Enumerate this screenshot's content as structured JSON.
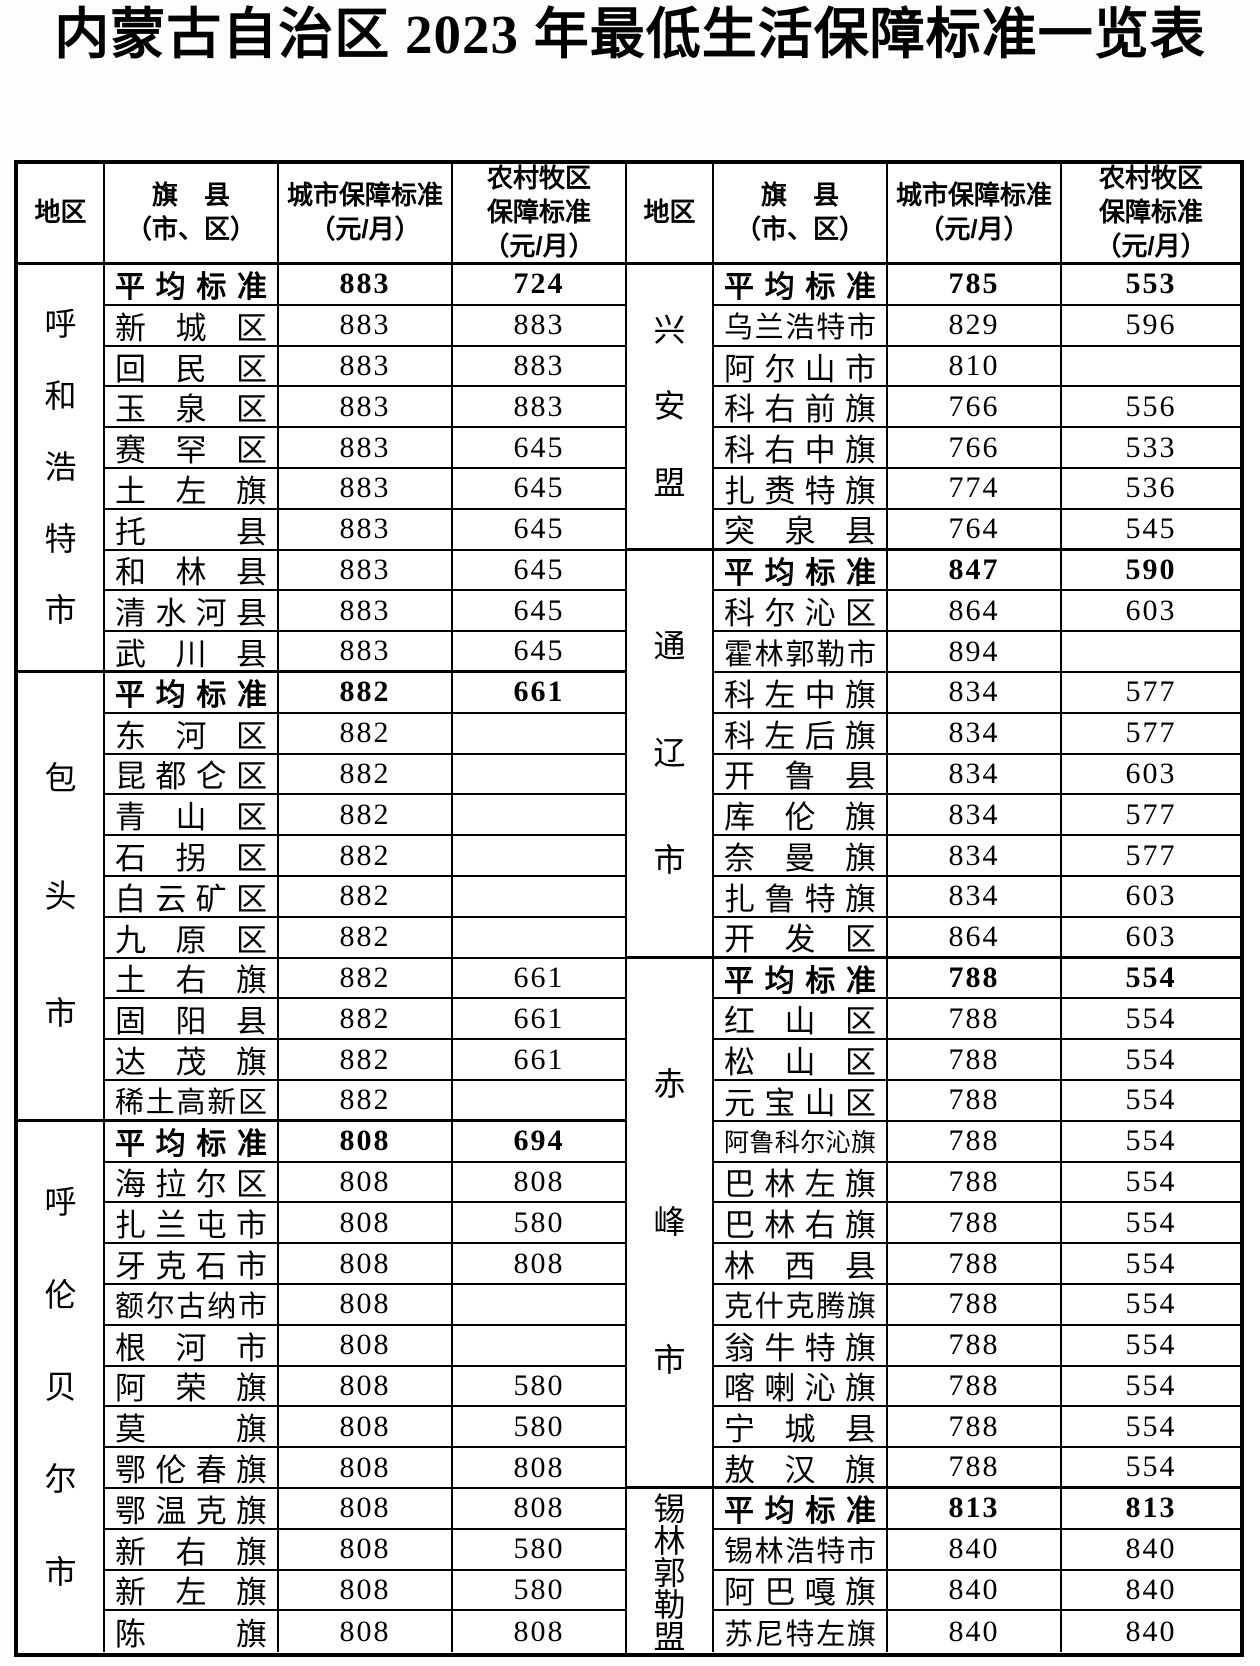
{
  "title": "内蒙古自治区 2023 年最低生活保障标准一览表",
  "colors": {
    "ink": "#000000",
    "paper": "#ffffff"
  },
  "header": {
    "region": "地区",
    "county": "旗　县\n（市、区）",
    "urban": "城市保障标准\n（元/月）",
    "rural": "农村牧区\n保障标准\n（元/月）"
  },
  "tables": [
    {
      "id": "left",
      "sections": [
        {
          "region": "呼和浩特市",
          "rows": [
            {
              "name": "平均标准",
              "urban": "883",
              "rural": "724",
              "avg": true
            },
            {
              "name": "新城区",
              "urban": "883",
              "rural": "883"
            },
            {
              "name": "回民区",
              "urban": "883",
              "rural": "883"
            },
            {
              "name": "玉泉区",
              "urban": "883",
              "rural": "883"
            },
            {
              "name": "赛罕区",
              "urban": "883",
              "rural": "645"
            },
            {
              "name": "土左旗",
              "urban": "883",
              "rural": "645"
            },
            {
              "name": "托县",
              "urban": "883",
              "rural": "645"
            },
            {
              "name": "和林县",
              "urban": "883",
              "rural": "645"
            },
            {
              "name": "清水河县",
              "urban": "883",
              "rural": "645"
            },
            {
              "name": "武川县",
              "urban": "883",
              "rural": "645"
            }
          ]
        },
        {
          "region": "包头市",
          "rows": [
            {
              "name": "平均标准",
              "urban": "882",
              "rural": "661",
              "avg": true
            },
            {
              "name": "东河区",
              "urban": "882",
              "rural": ""
            },
            {
              "name": "昆都仑区",
              "urban": "882",
              "rural": ""
            },
            {
              "name": "青山区",
              "urban": "882",
              "rural": ""
            },
            {
              "name": "石拐区",
              "urban": "882",
              "rural": ""
            },
            {
              "name": "白云矿区",
              "urban": "882",
              "rural": ""
            },
            {
              "name": "九原区",
              "urban": "882",
              "rural": ""
            },
            {
              "name": "土右旗",
              "urban": "882",
              "rural": "661"
            },
            {
              "name": "固阳县",
              "urban": "882",
              "rural": "661"
            },
            {
              "name": "达茂旗",
              "urban": "882",
              "rural": "661"
            },
            {
              "name": "稀土高新区",
              "urban": "882",
              "rural": ""
            }
          ]
        },
        {
          "region": "呼伦贝尔市",
          "rows": [
            {
              "name": "平均标准",
              "urban": "808",
              "rural": "694",
              "avg": true
            },
            {
              "name": "海拉尔区",
              "urban": "808",
              "rural": "808"
            },
            {
              "name": "扎兰屯市",
              "urban": "808",
              "rural": "580"
            },
            {
              "name": "牙克石市",
              "urban": "808",
              "rural": "808"
            },
            {
              "name": "额尔古纳市",
              "urban": "808",
              "rural": ""
            },
            {
              "name": "根河市",
              "urban": "808",
              "rural": ""
            },
            {
              "name": "阿荣旗",
              "urban": "808",
              "rural": "580"
            },
            {
              "name": "莫旗",
              "urban": "808",
              "rural": "580"
            },
            {
              "name": "鄂伦春旗",
              "urban": "808",
              "rural": "808"
            },
            {
              "name": "鄂温克旗",
              "urban": "808",
              "rural": "808"
            },
            {
              "name": "新右旗",
              "urban": "808",
              "rural": "580"
            },
            {
              "name": "新左旗",
              "urban": "808",
              "rural": "580"
            },
            {
              "name": "陈旗",
              "urban": "808",
              "rural": "808"
            }
          ]
        }
      ]
    },
    {
      "id": "right",
      "sections": [
        {
          "region": "兴安盟",
          "rows": [
            {
              "name": "平均标准",
              "urban": "785",
              "rural": "553",
              "avg": true
            },
            {
              "name": "乌兰浩特市",
              "urban": "829",
              "rural": "596"
            },
            {
              "name": "阿尔山市",
              "urban": "810",
              "rural": ""
            },
            {
              "name": "科右前旗",
              "urban": "766",
              "rural": "556"
            },
            {
              "name": "科右中旗",
              "urban": "766",
              "rural": "533"
            },
            {
              "name": "扎赉特旗",
              "urban": "774",
              "rural": "536"
            },
            {
              "name": "突泉县",
              "urban": "764",
              "rural": "545"
            }
          ]
        },
        {
          "region": "通辽市",
          "rows": [
            {
              "name": "平均标准",
              "urban": "847",
              "rural": "590",
              "avg": true
            },
            {
              "name": "科尔沁区",
              "urban": "864",
              "rural": "603"
            },
            {
              "name": "霍林郭勒市",
              "urban": "894",
              "rural": ""
            },
            {
              "name": "科左中旗",
              "urban": "834",
              "rural": "577"
            },
            {
              "name": "科左后旗",
              "urban": "834",
              "rural": "577"
            },
            {
              "name": "开鲁县",
              "urban": "834",
              "rural": "603"
            },
            {
              "name": "库伦旗",
              "urban": "834",
              "rural": "577"
            },
            {
              "name": "奈曼旗",
              "urban": "834",
              "rural": "577"
            },
            {
              "name": "扎鲁特旗",
              "urban": "834",
              "rural": "603"
            },
            {
              "name": "开发区",
              "urban": "864",
              "rural": "603"
            }
          ]
        },
        {
          "region": "赤峰市",
          "rows": [
            {
              "name": "平均标准",
              "urban": "788",
              "rural": "554",
              "avg": true
            },
            {
              "name": "红山区",
              "urban": "788",
              "rural": "554"
            },
            {
              "name": "松山区",
              "urban": "788",
              "rural": "554"
            },
            {
              "name": "元宝山区",
              "urban": "788",
              "rural": "554"
            },
            {
              "name": "阿鲁科尔沁旗",
              "urban": "788",
              "rural": "554"
            },
            {
              "name": "巴林左旗",
              "urban": "788",
              "rural": "554"
            },
            {
              "name": "巴林右旗",
              "urban": "788",
              "rural": "554"
            },
            {
              "name": "林西县",
              "urban": "788",
              "rural": "554"
            },
            {
              "name": "克什克腾旗",
              "urban": "788",
              "rural": "554"
            },
            {
              "name": "翁牛特旗",
              "urban": "788",
              "rural": "554"
            },
            {
              "name": "喀喇沁旗",
              "urban": "788",
              "rural": "554"
            },
            {
              "name": "宁城县",
              "urban": "788",
              "rural": "554"
            },
            {
              "name": "敖汉旗",
              "urban": "788",
              "rural": "554"
            }
          ]
        },
        {
          "region": "锡林郭勒盟",
          "rows": [
            {
              "name": "平均标准",
              "urban": "813",
              "rural": "813",
              "avg": true
            },
            {
              "name": "锡林浩特市",
              "urban": "840",
              "rural": "840"
            },
            {
              "name": "阿巴嘎旗",
              "urban": "840",
              "rural": "840"
            },
            {
              "name": "苏尼特左旗",
              "urban": "840",
              "rural": "840"
            }
          ]
        }
      ]
    }
  ]
}
